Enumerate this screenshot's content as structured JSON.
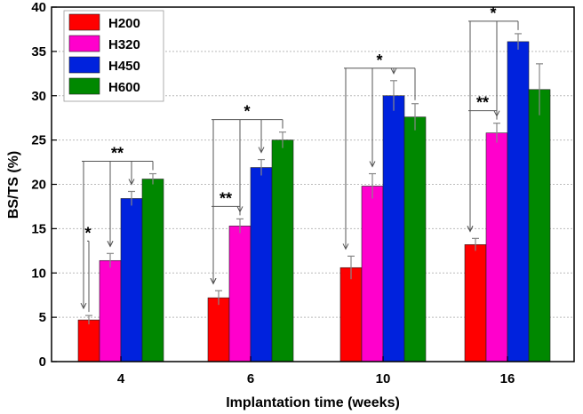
{
  "chart_data": {
    "type": "bar",
    "title": "",
    "xlabel": "Implantation time (weeks)",
    "ylabel": "BS/TS (%)",
    "ylim": [
      0,
      40
    ],
    "yticks": [
      0,
      5,
      10,
      15,
      20,
      25,
      30,
      35,
      40
    ],
    "categories": [
      "4",
      "6",
      "10",
      "16"
    ],
    "grid": "horizontal dotted",
    "legend": "top-left",
    "series": [
      {
        "name": "H200",
        "color": "#ff0000",
        "values": [
          4.7,
          7.2,
          10.6,
          13.2
        ],
        "errors": [
          0.5,
          0.8,
          1.3,
          0.7
        ]
      },
      {
        "name": "H320",
        "color": "#ff00cc",
        "values": [
          11.4,
          15.3,
          19.8,
          25.8
        ],
        "errors": [
          0.8,
          0.8,
          1.4,
          1.1
        ]
      },
      {
        "name": "H450",
        "color": "#0022dd",
        "values": [
          18.4,
          21.9,
          30.0,
          36.1
        ],
        "errors": [
          0.8,
          0.9,
          1.7,
          0.9
        ]
      },
      {
        "name": "H600",
        "color": "#008800",
        "values": [
          20.6,
          25.0,
          27.6,
          30.7
        ],
        "errors": [
          0.6,
          0.9,
          1.5,
          2.9
        ]
      }
    ],
    "significance": [
      {
        "category": 0,
        "label": "*",
        "from": 0,
        "to": [
          1
        ]
      },
      {
        "category": 0,
        "label": "**",
        "from": 3,
        "to": [
          0,
          1,
          2
        ]
      },
      {
        "category": 1,
        "label": "**",
        "from": 1,
        "to": [
          0
        ]
      },
      {
        "category": 1,
        "label": "*",
        "from": 3,
        "to": [
          0,
          1,
          2
        ]
      },
      {
        "category": 2,
        "label": "*",
        "from": 3,
        "to": [
          0,
          1,
          2
        ]
      },
      {
        "category": 3,
        "label": "**",
        "from": 1,
        "to": [
          0
        ]
      },
      {
        "category": 3,
        "label": "*",
        "from": 2,
        "to": [
          0,
          1
        ]
      }
    ]
  }
}
